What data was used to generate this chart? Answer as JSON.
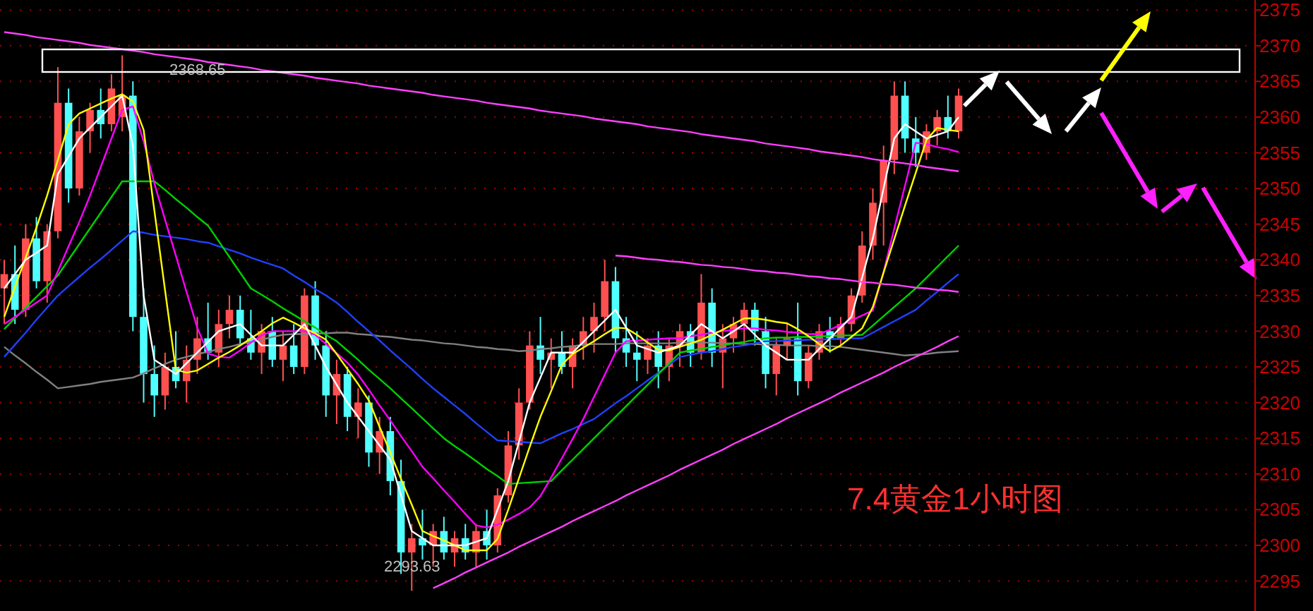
{
  "chart_data": {
    "type": "candlestick",
    "categories": [
      null,
      null,
      null,
      null,
      null,
      null,
      null,
      null,
      null,
      null,
      null,
      null,
      null,
      null,
      null,
      null,
      null,
      null,
      null,
      null,
      null,
      null,
      null,
      null,
      null,
      null,
      null,
      null,
      null,
      null,
      null,
      null,
      null,
      null,
      null,
      null,
      null,
      null,
      null,
      null,
      null,
      null,
      null,
      null,
      null,
      null,
      null,
      null,
      null,
      null,
      null,
      null,
      null,
      null,
      null,
      null,
      null,
      null,
      null,
      null,
      null,
      null,
      null,
      null,
      null,
      null,
      null,
      null,
      null,
      null,
      null,
      null,
      null,
      null,
      null,
      null,
      null,
      null,
      null,
      null,
      null,
      null,
      null,
      null,
      null,
      null,
      null,
      null,
      null,
      null
    ],
    "ohlc": [
      [
        2336,
        2340,
        2331,
        2338
      ],
      [
        2338,
        2342,
        2331,
        2333
      ],
      [
        2333,
        2345,
        2332,
        2343
      ],
      [
        2343,
        2346,
        2336,
        2337
      ],
      [
        2337,
        2345,
        2334,
        2344
      ],
      [
        2344,
        2367,
        2343,
        2362
      ],
      [
        2362,
        2364,
        2348,
        2350
      ],
      [
        2350,
        2360,
        2349,
        2358
      ],
      [
        2358,
        2362,
        2355,
        2361
      ],
      [
        2361,
        2364,
        2357,
        2359
      ],
      [
        2359,
        2366,
        2358,
        2364
      ],
      [
        2360,
        2368.65,
        2358,
        2363
      ],
      [
        2363,
        2365,
        2330,
        2332
      ],
      [
        2332,
        2336,
        2320,
        2324
      ],
      [
        2324,
        2328,
        2318,
        2321
      ],
      [
        2321,
        2327,
        2319,
        2325
      ],
      [
        2325,
        2330,
        2322,
        2323
      ],
      [
        2323,
        2328,
        2320,
        2326
      ],
      [
        2326,
        2332,
        2324,
        2329
      ],
      [
        2329,
        2334,
        2326,
        2327
      ],
      [
        2327,
        2333,
        2325,
        2331
      ],
      [
        2331,
        2335,
        2329,
        2333
      ],
      [
        2333,
        2335,
        2328,
        2329
      ],
      [
        2329,
        2333,
        2326,
        2327
      ],
      [
        2327,
        2331,
        2324,
        2330
      ],
      [
        2330,
        2332,
        2325,
        2326
      ],
      [
        2326,
        2330,
        2323,
        2328
      ],
      [
        2328,
        2331,
        2324,
        2325
      ],
      [
        2325,
        2336,
        2324,
        2335
      ],
      [
        2335,
        2337,
        2326,
        2328
      ],
      [
        2328,
        2330,
        2318,
        2321
      ],
      [
        2321,
        2326,
        2317,
        2324
      ],
      [
        2324,
        2325,
        2316,
        2318
      ],
      [
        2318,
        2322,
        2315,
        2320
      ],
      [
        2320,
        2321,
        2311,
        2313
      ],
      [
        2313,
        2318,
        2310,
        2316
      ],
      [
        2316,
        2318,
        2307,
        2309
      ],
      [
        2309,
        2312,
        2296,
        2299
      ],
      [
        2299,
        2303,
        2293.63,
        2301
      ],
      [
        2301,
        2305,
        2298,
        2300
      ],
      [
        2300,
        2303,
        2297,
        2302
      ],
      [
        2302,
        2304,
        2298,
        2299
      ],
      [
        2299,
        2302,
        2297,
        2301
      ],
      [
        2301,
        2303,
        2298,
        2299
      ],
      [
        2299,
        2303,
        2297,
        2302
      ],
      [
        2302,
        2305,
        2298,
        2300
      ],
      [
        2300,
        2308,
        2299,
        2307
      ],
      [
        2307,
        2316,
        2306,
        2314
      ],
      [
        2314,
        2322,
        2312,
        2320
      ],
      [
        2320,
        2330,
        2319,
        2328
      ],
      [
        2328,
        2332,
        2324,
        2326
      ],
      [
        2326,
        2329,
        2322,
        2327
      ],
      [
        2327,
        2330,
        2324,
        2325
      ],
      [
        2325,
        2329,
        2322,
        2328
      ],
      [
        2328,
        2332,
        2326,
        2330
      ],
      [
        2330,
        2334,
        2327,
        2332
      ],
      [
        2332,
        2340,
        2330,
        2337
      ],
      [
        2337,
        2339,
        2327,
        2329
      ],
      [
        2329,
        2332,
        2325,
        2327
      ],
      [
        2327,
        2330,
        2323,
        2326
      ],
      [
        2326,
        2329,
        2324,
        2328
      ],
      [
        2328,
        2330,
        2322,
        2325
      ],
      [
        2325,
        2329,
        2323,
        2328
      ],
      [
        2328,
        2331,
        2325,
        2330
      ],
      [
        2330,
        2331,
        2325,
        2327
      ],
      [
        2327,
        2338,
        2326,
        2334
      ],
      [
        2334,
        2336,
        2325,
        2327
      ],
      [
        2327,
        2331,
        2322,
        2329
      ],
      [
        2329,
        2332,
        2327,
        2331
      ],
      [
        2331,
        2334,
        2328,
        2333
      ],
      [
        2333,
        2334,
        2328,
        2330
      ],
      [
        2330,
        2332,
        2322,
        2324
      ],
      [
        2324,
        2329,
        2321,
        2328
      ],
      [
        2328,
        2331,
        2326,
        2329
      ],
      [
        2329,
        2334,
        2321,
        2323
      ],
      [
        2323,
        2328,
        2322,
        2327
      ],
      [
        2327,
        2331,
        2326,
        2330
      ],
      [
        2330,
        2332,
        2327,
        2329
      ],
      [
        2329,
        2332,
        2328,
        2331
      ],
      [
        2331,
        2336,
        2330,
        2335
      ],
      [
        2335,
        2344,
        2334,
        2342
      ],
      [
        2342,
        2350,
        2340,
        2348
      ],
      [
        2348,
        2356,
        2342,
        2354
      ],
      [
        2354,
        2365,
        2352,
        2363
      ],
      [
        2363,
        2365,
        2355,
        2357
      ],
      [
        2357,
        2360,
        2353,
        2355
      ],
      [
        2355,
        2359,
        2354,
        2358
      ],
      [
        2358,
        2361,
        2356,
        2360
      ],
      [
        2360,
        2363,
        2357,
        2358
      ],
      [
        2358,
        2364,
        2357,
        2363
      ]
    ],
    "series": [
      {
        "type": "line",
        "color": "#808080",
        "values": [
          2327.8,
          2326.6,
          2325.5,
          2324.3,
          2323.2,
          2322,
          2322.2,
          2322.4,
          2322.6,
          2322.9,
          2323.1,
          2323.3,
          2323.5,
          2324.1,
          2324.8,
          2325.4,
          2326,
          2326.4,
          2326.8,
          2327.1,
          2327.5,
          2327.8,
          2328.2,
          2328.5,
          2328.8,
          2329.2,
          2329.5,
          2329.6,
          2329.6,
          2329.7,
          2329.7,
          2329.8,
          2329.8,
          2329.6,
          2329.5,
          2329.3,
          2329.2,
          2329,
          2328.8,
          2328.7,
          2328.5,
          2328.3,
          2328.2,
          2328,
          2327.8,
          2327.7,
          2327.5,
          2327.4,
          2327.2,
          2327.3,
          2327.5,
          2327.6,
          2327.8,
          2327.9,
          2328.1,
          2328.2,
          2328.2,
          2328.2,
          2328.3,
          2328.3,
          2328.3,
          2328.3,
          2328.3,
          2328.4,
          2328.4,
          2328.4,
          2328.4,
          2328.3,
          2328.3,
          2328.2,
          2328.2,
          2328.1,
          2328.1,
          2328,
          2328,
          2328,
          2327.9,
          2327.9,
          2327.8,
          2327.6,
          2327.4,
          2327.2,
          2327,
          2326.8,
          2326.6,
          2326.7,
          2326.8,
          2327,
          2327.1,
          2327.2
        ]
      },
      {
        "type": "line",
        "color": "#2040ff",
        "values": [
          2326.4,
          2328.1,
          2329.8,
          2331.6,
          2333.3,
          2335,
          2336.3,
          2337.6,
          2338.9,
          2340.1,
          2341.4,
          2342.7,
          2344,
          2343.8,
          2343.5,
          2343.3,
          2343.1,
          2342.9,
          2342.6,
          2342.4,
          2341.9,
          2341.4,
          2340.9,
          2340.3,
          2339.8,
          2339.3,
          2338.8,
          2337.8,
          2336.9,
          2335.9,
          2335,
          2334,
          2332.7,
          2331.3,
          2330,
          2328.7,
          2327.3,
          2326,
          2324.7,
          2323.3,
          2322,
          2320.8,
          2319.6,
          2318.4,
          2317.1,
          2315.9,
          2314.7,
          2314.6,
          2314.5,
          2314.4,
          2314.3,
          2315,
          2315.7,
          2316.3,
          2317,
          2317.7,
          2318.8,
          2319.9,
          2320.9,
          2322,
          2323.1,
          2324.2,
          2325.3,
          2326.4,
          2326.7,
          2327,
          2327.2,
          2327.5,
          2327.8,
          2328,
          2328.3,
          2328.6,
          2328.6,
          2328.7,
          2328.7,
          2328.8,
          2328.8,
          2328.9,
          2328.9,
          2329,
          2329,
          2329.8,
          2330.6,
          2331.4,
          2332.2,
          2333,
          2334.3,
          2335.5,
          2336.8,
          2338
        ]
      },
      {
        "type": "line",
        "color": "#00d000",
        "values": [
          2330.3,
          2331.8,
          2333.3,
          2334.8,
          2336.3,
          2337.8,
          2340,
          2342.2,
          2344.4,
          2346.6,
          2348.8,
          2351,
          2351,
          2351,
          2351,
          2349.8,
          2348.5,
          2347.3,
          2346,
          2344.8,
          2342.6,
          2340.4,
          2338.2,
          2336,
          2335.1,
          2334.2,
          2333.2,
          2332.3,
          2331.4,
          2330.5,
          2329.5,
          2328.6,
          2327.3,
          2326,
          2324.6,
          2323.3,
          2322,
          2320.6,
          2319.2,
          2317.8,
          2316.4,
          2315,
          2313.9,
          2312.9,
          2311.8,
          2310.7,
          2309.7,
          2308.6,
          2308.7,
          2308.8,
          2308.9,
          2309,
          2310.5,
          2312,
          2313.5,
          2315,
          2316.5,
          2318,
          2319.5,
          2321,
          2322.5,
          2324,
          2325.5,
          2327,
          2327.3,
          2327.5,
          2327.8,
          2328,
          2328.3,
          2328.5,
          2328.8,
          2329,
          2329.1,
          2329.1,
          2329.2,
          2329.2,
          2329.3,
          2329.3,
          2329.4,
          2329.4,
          2329.5,
          2330.8,
          2332.1,
          2333.4,
          2334.7,
          2336,
          2337.5,
          2339,
          2340.5,
          2342
        ]
      },
      {
        "type": "line",
        "color": "#ff00ff",
        "values": [
          2331,
          2332,
          2333,
          2334,
          2335,
          2338.4,
          2341.9,
          2345.3,
          2349,
          2353,
          2357,
          2361,
          2361.5,
          2356.6,
          2350.7,
          2345.6,
          2340.6,
          2335.5,
          2330.5,
          2326.9,
          2326.4,
          2326.3,
          2327.3,
          2328.4,
          2329.4,
          2330,
          2330,
          2330,
          2330,
          2329.5,
          2328.2,
          2326.9,
          2325.6,
          2323.9,
          2321.8,
          2319.6,
          2317.5,
          2315.3,
          2313.2,
          2311,
          2309.4,
          2307.7,
          2306.1,
          2304.4,
          2302.8,
          2302.5,
          2302.9,
          2303.6,
          2304.4,
          2305.3,
          2306.9,
          2309.5,
          2312.2,
          2314.9,
          2317.7,
          2320.8,
          2323.9,
          2327,
          2328.6,
          2328.7,
          2328.8,
          2328.9,
          2329,
          2329,
          2329.3,
          2329.5,
          2329.8,
          2330,
          2330.2,
          2330.4,
          2330.4,
          2330.2,
          2330.1,
          2329.9,
          2329.8,
          2329.6,
          2329.6,
          2330.2,
          2330.9,
          2331.5,
          2332.2,
          2332.9,
          2338.3,
          2344.4,
          2350.4,
          2356.4,
          2356.2,
          2355.8,
          2355.5,
          2355.1
        ]
      },
      {
        "type": "line",
        "color": "#ffff00",
        "values": [
          2332,
          2336.2,
          2340.3,
          2344.5,
          2349,
          2354,
          2359,
          2360.5,
          2361.2,
          2361.9,
          2362.6,
          2363.2,
          2362.2,
          2358.2,
          2346.9,
          2335.7,
          2324.6,
          2324.2,
          2324.5,
          2325.4,
          2326.3,
          2327.1,
          2328,
          2329,
          2330,
          2331.1,
          2331.9,
          2331.2,
          2330.4,
          2329.7,
          2328.8,
          2326.8,
          2324.7,
          2322.6,
          2320.3,
          2316.6,
          2313,
          2309.3,
          2305.7,
          2302,
          2301.3,
          2300.7,
          2300,
          2299.3,
          2299.3,
          2299.3,
          2300.9,
          2305,
          2309.4,
          2313.8,
          2318,
          2321.6,
          2325.3,
          2326.8,
          2327.7,
          2328.6,
          2329.6,
          2330.5,
          2330.4,
          2329.5,
          2328.4,
          2327.4,
          2327.3,
          2327.8,
          2328.3,
          2328.8,
          2329.5,
          2330.2,
          2331,
          2331.8,
          2331.8,
          2331.6,
          2331.3,
          2331.1,
          2330.3,
          2329.3,
          2328.2,
          2327.2,
          2328,
          2329.2,
          2330.4,
          2333.4,
          2338.2,
          2342.9,
          2347.6,
          2352.2,
          2356.8,
          2358.5,
          2358.2,
          2358
        ]
      },
      {
        "type": "line",
        "color": "#ffffff",
        "values": [
          2336,
          2338,
          2340,
          2341,
          2342,
          2352,
          2354.5,
          2357,
          2358.5,
          2360,
          2361.5,
          2363,
          2356,
          2335,
          2326,
          2325,
          2324,
          2325.5,
          2327,
          2328.5,
          2330,
          2330.5,
          2331,
          2329.5,
          2328,
          2328,
          2328,
          2329.5,
          2331,
          2328,
          2325,
          2322.5,
          2320,
          2318,
          2316,
          2314,
          2312,
          2307,
          2302,
          2301,
          2300,
          2300,
          2300,
          2300,
          2300.5,
          2301,
          2305,
          2309,
          2314.5,
          2320,
          2323.5,
          2327,
          2327,
          2327,
          2328.5,
          2330,
          2331.5,
          2333,
          2330.5,
          2328,
          2327.5,
          2327,
          2327.5,
          2328,
          2329.5,
          2331,
          2330,
          2329,
          2330,
          2331,
          2329.5,
          2328,
          2327,
          2326,
          2326,
          2326,
          2327.5,
          2329,
          2330.5,
          2332,
          2337.5,
          2343,
          2350,
          2357,
          2359,
          2358,
          2357,
          2357.5,
          2358,
          2360
        ]
      },
      {
        "type": "line",
        "color": "#ff40ff",
        "values": [
          2371.9,
          2371.7,
          2371.5,
          2371.2,
          2371,
          2370.8,
          2370.6,
          2370.4,
          2370.1,
          2369.9,
          2369.7,
          2369.5,
          2369.3,
          2369.1,
          2368.8,
          2368.6,
          2368.4,
          2368.2,
          2368,
          2367.7,
          2367.5,
          2367.3,
          2367.1,
          2366.9,
          2366.6,
          2366.4,
          2366.2,
          2366,
          2365.8,
          2365.5,
          2365.3,
          2365.1,
          2364.9,
          2364.7,
          2364.4,
          2364.2,
          2364,
          2363.8,
          2363.6,
          2363.4,
          2363.1,
          2362.9,
          2362.7,
          2362.5,
          2362.3,
          2362,
          2361.8,
          2361.6,
          2361.4,
          2361.2,
          2360.9,
          2360.7,
          2360.5,
          2360.3,
          2360.1,
          2359.8,
          2359.6,
          2359.4,
          2359.2,
          2359,
          2358.7,
          2358.5,
          2358.3,
          2358.1,
          2357.9,
          2357.6,
          2357.4,
          2357.2,
          2357,
          2356.8,
          2356.6,
          2356.3,
          2356.1,
          2355.9,
          2355.7,
          2355.5,
          2355.2,
          2355,
          2354.8,
          2354.6,
          2354.4,
          2354.1,
          2353.9,
          2353.7,
          2353.5,
          2353.3,
          2353,
          2352.8,
          2352.6,
          2352.4
        ]
      },
      {
        "type": "line",
        "color": "#ff40ff",
        "values": [
          null,
          null,
          null,
          null,
          null,
          null,
          null,
          null,
          null,
          null,
          null,
          null,
          null,
          null,
          null,
          null,
          null,
          null,
          null,
          null,
          null,
          null,
          null,
          null,
          null,
          null,
          null,
          null,
          null,
          null,
          null,
          null,
          null,
          null,
          null,
          null,
          null,
          null,
          null,
          null,
          null,
          null,
          null,
          null,
          null,
          null,
          null,
          null,
          null,
          null,
          null,
          null,
          null,
          null,
          null,
          null,
          null,
          2340.6,
          2340.5,
          2340.3,
          2340.1,
          2340,
          2339.8,
          2339.7,
          2339.5,
          2339.3,
          2339.2,
          2339,
          2338.9,
          2338.7,
          2338.5,
          2338.4,
          2338.2,
          2338.1,
          2337.9,
          2337.7,
          2337.6,
          2337.4,
          2337.3,
          2337.1,
          2336.9,
          2336.8,
          2336.6,
          2336.5,
          2336.3,
          2336.1,
          2336,
          2335.8,
          2335.7,
          2335.5
        ]
      },
      {
        "type": "line",
        "color": "#ff40ff",
        "values": [
          null,
          null,
          null,
          null,
          null,
          null,
          null,
          null,
          null,
          null,
          null,
          null,
          null,
          null,
          null,
          null,
          null,
          null,
          null,
          null,
          null,
          null,
          null,
          null,
          null,
          null,
          null,
          null,
          null,
          null,
          null,
          null,
          null,
          null,
          null,
          null,
          null,
          null,
          null,
          null,
          2294,
          2294.7,
          2295.4,
          2296.2,
          2296.9,
          2297.6,
          2298.3,
          2299,
          2299.8,
          2300.5,
          2301.2,
          2301.9,
          2302.6,
          2303.4,
          2304.1,
          2304.8,
          2305.5,
          2306.2,
          2307,
          2307.7,
          2308.4,
          2309.1,
          2309.8,
          2310.6,
          2311.3,
          2312,
          2312.7,
          2313.4,
          2314.2,
          2314.9,
          2315.6,
          2316.3,
          2317,
          2317.8,
          2318.5,
          2319.2,
          2319.9,
          2320.6,
          2321.4,
          2322.1,
          2322.8,
          2323.5,
          2324.2,
          2325,
          2325.7,
          2326.4,
          2327.1,
          2327.8,
          2328.6,
          2329.3
        ]
      }
    ],
    "annotations": [
      "2368.65",
      "2293.63",
      "7.4黄金1小时图"
    ],
    "ylim": [
      2290.8,
      2376.4
    ],
    "yticks": [
      2295,
      2300,
      2305,
      2310,
      2315,
      2320,
      2325,
      2330,
      2335,
      2340,
      2345,
      2350,
      2355,
      2360,
      2365,
      2370,
      2375
    ],
    "tick_labels": "y",
    "grid": "y"
  }
}
